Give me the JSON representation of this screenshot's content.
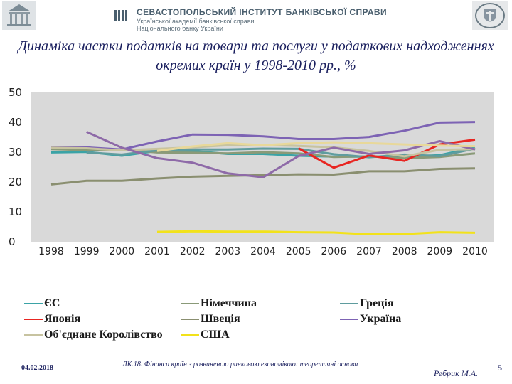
{
  "header": {
    "institution": "СЕВАСТОПОЛЬСЬКИЙ ІНСТИТУТ БАНКІВСЬКОЇ СПРАВИ",
    "subtitle_1": "Української академії банківської справи",
    "subtitle_2": "Національного банку України"
  },
  "title": "Динаміка частки податків на товари та послуги у податкових надходженнях окремих країн у 1998-2010 рр., %",
  "chart_data": {
    "type": "line",
    "title": "Динаміка частки податків на товари та послуги у податкових надходженнях окремих країн у 1998-2010 рр., %",
    "xlabel": "",
    "ylabel": "",
    "ylim": [
      0,
      50
    ],
    "yticks": [
      0,
      10,
      20,
      30,
      40,
      50
    ],
    "grid": false,
    "categories": [
      "1998",
      "1999",
      "2000",
      "2001",
      "2002",
      "2003",
      "2004",
      "2005",
      "2006",
      "2007",
      "2008",
      "2009",
      "2010"
    ],
    "series": [
      {
        "name": "ЄС",
        "color": "#3ba3a6",
        "values": [
          29.9,
          30.1,
          28.8,
          30.4,
          30.4,
          29.4,
          29.4,
          28.8,
          28.5,
          28.5,
          28.5,
          29.0,
          31.5
        ]
      },
      {
        "name": "Німеччина",
        "color": "#8a9a78",
        "values": [
          31.0,
          30.7,
          30.8,
          29.9,
          29.8,
          29.6,
          30.0,
          29.6,
          28.4,
          28.6,
          28.0,
          28.4,
          29.6
        ]
      },
      {
        "name": "Греція",
        "color": "#5f9c9e",
        "values": [
          null,
          29.9,
          29.2,
          30.6,
          30.9,
          30.9,
          31.2,
          31.1,
          29.3,
          28.3,
          29.2,
          28.7,
          31.2
        ]
      },
      {
        "name": "Японія",
        "color": "#e82622",
        "values": [
          null,
          null,
          null,
          null,
          null,
          null,
          null,
          31.3,
          24.8,
          28.9,
          27.1,
          32.6,
          34.2
        ]
      },
      {
        "name": "Швеція",
        "color": "#8a8f70",
        "values": [
          19.2,
          20.4,
          20.4,
          21.2,
          21.8,
          22.1,
          22.3,
          22.6,
          22.5,
          23.6,
          23.6,
          24.4,
          24.6
        ]
      },
      {
        "name": "Україна",
        "color": "#7d63b4",
        "values": [
          31.6,
          31.6,
          30.9,
          33.6,
          35.9,
          35.8,
          35.3,
          34.4,
          34.4,
          35.1,
          37.2,
          39.9,
          40.1
        ]
      },
      {
        "name": "Об'єднане Королівство",
        "color": "#c7c3a0",
        "values": [
          31.5,
          31.3,
          30.6,
          31.1,
          31.6,
          32.3,
          32.4,
          32.1,
          31.6,
          30.4,
          28.6,
          30.8,
          31.0
        ]
      },
      {
        "name": "США",
        "color": "#f2e21a",
        "values": [
          null,
          null,
          null,
          3.3,
          3.5,
          3.4,
          3.4,
          3.2,
          3.1,
          2.5,
          2.6,
          3.2,
          3.0
        ]
      },
      {
        "name": "",
        "color": "#8e6aa8",
        "values": [
          null,
          36.8,
          31.5,
          28.0,
          26.5,
          22.9,
          21.6,
          28.7,
          31.5,
          29.4,
          30.6,
          33.7,
          30.9
        ]
      },
      {
        "name": "",
        "color": "#e8d89a",
        "values": [
          null,
          null,
          null,
          30.4,
          31.9,
          33.0,
          32.3,
          33.0,
          33.3,
          33.0,
          32.6,
          32.2,
          32.0
        ]
      }
    ]
  },
  "footer": {
    "date": "04.02.2018",
    "course": "ЛК.18. Фінанси країн з розвиненою ринковою економікою: теоретичні основи",
    "author": "Ребрик М.А.",
    "page": "5"
  }
}
